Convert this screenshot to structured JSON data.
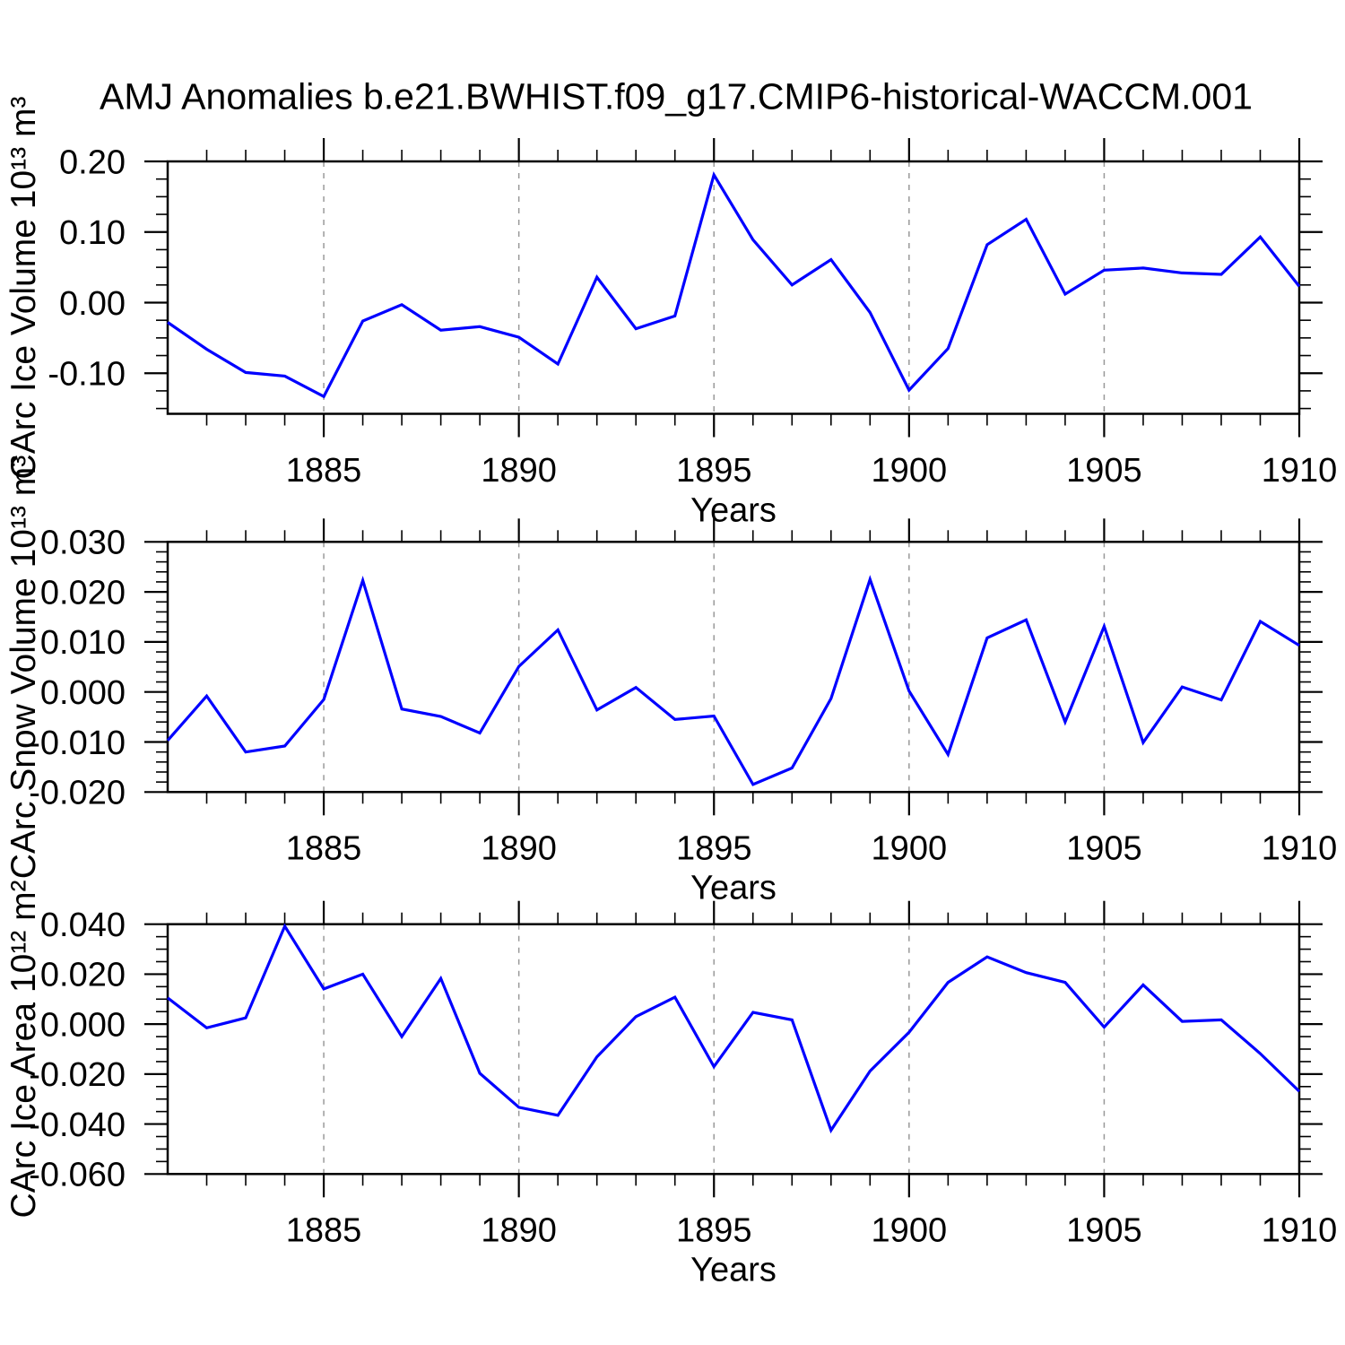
{
  "title": "AMJ Anomalies b.e21.BWHIST.f09_g17.CMIP6-historical-WACCM.001",
  "colors": {
    "line": "#0000ff",
    "grid": "#999999",
    "axis": "#000000"
  },
  "chart_data": [
    {
      "type": "line",
      "name": "carc-ice-volume",
      "ylabel": "CArc Ice Volume 10¹³ m³",
      "xlabel": "Years",
      "xlim": [
        1881,
        1910
      ],
      "ylim": [
        -0.1575,
        0.2
      ],
      "x_major_ticks": [
        1885,
        1890,
        1895,
        1900,
        1905,
        1910
      ],
      "x_tick_labels": [
        "1885",
        "1890",
        "1895",
        "1900",
        "1905",
        "1910"
      ],
      "x_minor_step": 1,
      "grid_x": [
        1885,
        1890,
        1895,
        1900,
        1905
      ],
      "y_major_ticks": [
        0.2,
        0.1,
        0.0,
        -0.1
      ],
      "y_tick_labels": [
        "0.20",
        "0.10",
        "0.00",
        "-0.10"
      ],
      "y_minor_step": 0.025,
      "x": [
        1881,
        1882,
        1883,
        1884,
        1885,
        1886,
        1887,
        1888,
        1889,
        1890,
        1891,
        1892,
        1893,
        1894,
        1895,
        1896,
        1897,
        1898,
        1899,
        1900,
        1901,
        1902,
        1903,
        1904,
        1905,
        1906,
        1907,
        1908,
        1909,
        1910
      ],
      "values": [
        -0.028,
        -0.066,
        -0.099,
        -0.104,
        -0.133,
        -0.026,
        -0.003,
        -0.039,
        -0.034,
        -0.049,
        -0.087,
        0.036,
        -0.037,
        -0.019,
        0.181,
        0.089,
        0.025,
        0.061,
        -0.014,
        -0.124,
        -0.065,
        0.082,
        0.118,
        0.012,
        0.046,
        0.049,
        0.042,
        0.04,
        0.093,
        0.023
      ]
    },
    {
      "type": "line",
      "name": "carc-snow-volume",
      "ylabel": "CArc Snow Volume 10¹³ m³",
      "xlabel": "Years",
      "xlim": [
        1881,
        1910
      ],
      "ylim": [
        -0.02,
        0.03
      ],
      "x_major_ticks": [
        1885,
        1890,
        1895,
        1900,
        1905,
        1910
      ],
      "x_tick_labels": [
        "1885",
        "1890",
        "1895",
        "1900",
        "1905",
        "1910"
      ],
      "x_minor_step": 1,
      "grid_x": [
        1885,
        1890,
        1895,
        1900,
        1905
      ],
      "y_major_ticks": [
        0.03,
        0.02,
        0.01,
        0.0,
        -0.01,
        -0.02
      ],
      "y_tick_labels": [
        "0.030",
        "0.020",
        "0.010",
        "0.000",
        "-0.010",
        "-0.020"
      ],
      "y_minor_step": 0.002,
      "x": [
        1881,
        1882,
        1883,
        1884,
        1885,
        1886,
        1887,
        1888,
        1889,
        1890,
        1891,
        1892,
        1893,
        1894,
        1895,
        1896,
        1897,
        1898,
        1899,
        1900,
        1901,
        1902,
        1903,
        1904,
        1905,
        1906,
        1907,
        1908,
        1909,
        1910
      ],
      "values": [
        -0.0097,
        -0.0008,
        -0.012,
        -0.0108,
        -0.0015,
        0.0223,
        -0.0034,
        -0.0049,
        -0.0082,
        0.0051,
        0.0124,
        -0.0036,
        0.0009,
        -0.0055,
        -0.0048,
        -0.0185,
        -0.0152,
        -0.0013,
        0.0225,
        0.0002,
        -0.0125,
        0.0108,
        0.0144,
        -0.006,
        0.0131,
        -0.0101,
        0.001,
        -0.0016,
        0.0141,
        0.0093
      ]
    },
    {
      "type": "line",
      "name": "carc-ice-area",
      "ylabel": "CArc Ice Area 10¹² m²",
      "xlabel": "Years",
      "xlim": [
        1881,
        1910
      ],
      "ylim": [
        -0.06,
        0.04
      ],
      "x_major_ticks": [
        1885,
        1890,
        1895,
        1900,
        1905,
        1910
      ],
      "x_tick_labels": [
        "1885",
        "1890",
        "1895",
        "1900",
        "1905",
        "1910"
      ],
      "x_minor_step": 1,
      "grid_x": [
        1885,
        1890,
        1895,
        1900,
        1905
      ],
      "y_major_ticks": [
        0.04,
        0.02,
        0.0,
        -0.02,
        -0.04,
        -0.06
      ],
      "y_tick_labels": [
        "0.040",
        "0.020",
        "0.000",
        "-0.020",
        "-0.040",
        "-0.060"
      ],
      "y_minor_step": 0.005,
      "x": [
        1881,
        1882,
        1883,
        1884,
        1885,
        1886,
        1887,
        1888,
        1889,
        1890,
        1891,
        1892,
        1893,
        1894,
        1895,
        1896,
        1897,
        1898,
        1899,
        1900,
        1901,
        1902,
        1903,
        1904,
        1905,
        1906,
        1907,
        1908,
        1909,
        1910
      ],
      "values": [
        0.0105,
        -0.0015,
        0.0025,
        0.0392,
        0.0141,
        0.02,
        -0.005,
        0.0183,
        -0.0197,
        -0.0333,
        -0.0365,
        -0.0131,
        0.003,
        0.0108,
        -0.017,
        0.0047,
        0.0017,
        -0.0425,
        -0.0188,
        -0.0033,
        0.0167,
        0.0269,
        0.0206,
        0.0167,
        -0.0012,
        0.0157,
        0.0011,
        0.0017,
        -0.0118,
        -0.0269
      ]
    }
  ]
}
